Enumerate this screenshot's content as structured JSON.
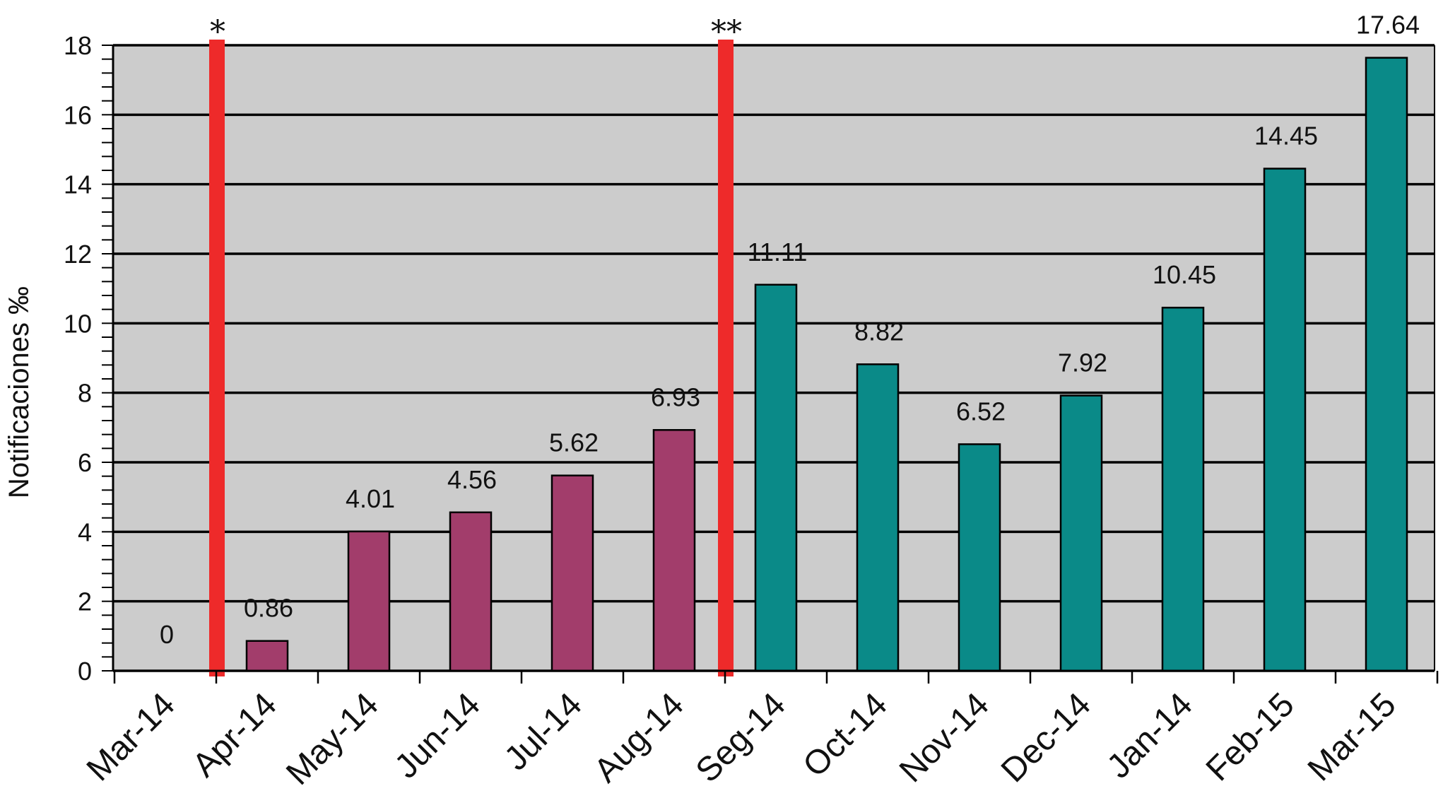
{
  "chart_data": {
    "type": "bar",
    "title": "",
    "xlabel": "",
    "ylabel": "Notificaciones ‰",
    "ylim": [
      0,
      18
    ],
    "yticks": [
      0,
      2,
      4,
      6,
      8,
      10,
      12,
      14,
      16,
      18
    ],
    "grid": true,
    "categories": [
      "Mar-14",
      "Apr-14",
      "May-14",
      "Jun-14",
      "Jul-14",
      "Aug-14",
      "Seg-14",
      "Oct-14",
      "Nov-14",
      "Dec-14",
      "Jan-14",
      "Feb-15",
      "Mar-15"
    ],
    "values": [
      0,
      0.86,
      4.01,
      4.56,
      5.62,
      6.93,
      11.11,
      8.82,
      6.52,
      7.92,
      10.45,
      14.45,
      17.64
    ],
    "value_labels": [
      "0",
      "0.86",
      "4.01",
      "4.56",
      "5.62",
      "6.93",
      "11.11",
      "8.82",
      "6.52",
      "7.92",
      "10.45",
      "14.45",
      "17.64"
    ],
    "bar_colors": [
      "#a23d6b",
      "#a23d6b",
      "#a23d6b",
      "#a23d6b",
      "#a23d6b",
      "#a23d6b",
      "#0a8a88",
      "#0a8a88",
      "#0a8a88",
      "#0a8a88",
      "#0a8a88",
      "#0a8a88",
      "#0a8a88"
    ],
    "markers": [
      {
        "label": "*",
        "between": [
          "Mar-14",
          "Apr-14"
        ]
      },
      {
        "label": "**",
        "between": [
          "Aug-14",
          "Seg-14"
        ]
      }
    ],
    "colors": {
      "plot_background": "#cccccc",
      "marker_line": "#ee2a2a",
      "gridline": "#000000"
    }
  }
}
